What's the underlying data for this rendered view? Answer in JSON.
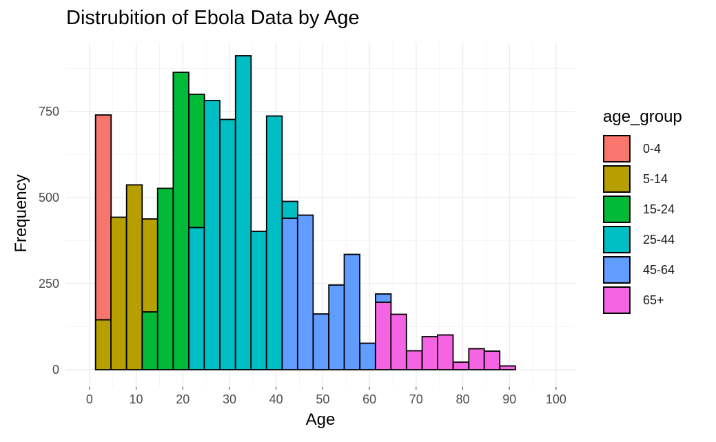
{
  "chart_data": {
    "type": "bar",
    "subtype": "stacked-histogram",
    "title": "Distrubition of Ebola Data by Age",
    "xlabel": "Age",
    "ylabel": "Frequency",
    "xlim": [
      -5,
      104
    ],
    "ylim": [
      -50,
      950
    ],
    "xticks": [
      0,
      10,
      20,
      30,
      40,
      50,
      60,
      70,
      80,
      90,
      100
    ],
    "yticks": [
      0,
      250,
      500,
      750
    ],
    "grid": true,
    "legend_position": "right",
    "legend_title": "age_group",
    "groups": [
      "0-4",
      "5-14",
      "15-24",
      "25-44",
      "45-64",
      "65+"
    ],
    "colors": {
      "0-4": "#F8766D",
      "5-14": "#B79F00",
      "15-24": "#00BA38",
      "25-44": "#00BFC4",
      "45-64": "#619CFF",
      "65+": "#F564E3"
    },
    "bin_width": 3.33,
    "bins": [
      {
        "start": 1.3,
        "stack": [
          {
            "group": "5-14",
            "value": 145
          },
          {
            "group": "0-4",
            "value": 595
          }
        ]
      },
      {
        "start": 4.6,
        "stack": [
          {
            "group": "5-14",
            "value": 443
          }
        ]
      },
      {
        "start": 7.95,
        "stack": [
          {
            "group": "5-14",
            "value": 537
          }
        ]
      },
      {
        "start": 11.3,
        "stack": [
          {
            "group": "15-24",
            "value": 168
          },
          {
            "group": "5-14",
            "value": 270
          }
        ]
      },
      {
        "start": 14.6,
        "stack": [
          {
            "group": "15-24",
            "value": 527
          }
        ]
      },
      {
        "start": 17.95,
        "stack": [
          {
            "group": "15-24",
            "value": 864
          }
        ]
      },
      {
        "start": 21.3,
        "stack": [
          {
            "group": "25-44",
            "value": 413
          },
          {
            "group": "15-24",
            "value": 387
          }
        ]
      },
      {
        "start": 24.6,
        "stack": [
          {
            "group": "25-44",
            "value": 782
          }
        ]
      },
      {
        "start": 27.95,
        "stack": [
          {
            "group": "25-44",
            "value": 727
          }
        ]
      },
      {
        "start": 31.3,
        "stack": [
          {
            "group": "25-44",
            "value": 912
          }
        ]
      },
      {
        "start": 34.6,
        "stack": [
          {
            "group": "25-44",
            "value": 402
          }
        ]
      },
      {
        "start": 37.95,
        "stack": [
          {
            "group": "25-44",
            "value": 737
          }
        ]
      },
      {
        "start": 41.3,
        "stack": [
          {
            "group": "45-64",
            "value": 440
          },
          {
            "group": "25-44",
            "value": 49
          }
        ]
      },
      {
        "start": 44.6,
        "stack": [
          {
            "group": "45-64",
            "value": 449
          }
        ]
      },
      {
        "start": 47.95,
        "stack": [
          {
            "group": "45-64",
            "value": 162
          }
        ]
      },
      {
        "start": 51.3,
        "stack": [
          {
            "group": "45-64",
            "value": 246
          }
        ]
      },
      {
        "start": 54.6,
        "stack": [
          {
            "group": "45-64",
            "value": 335
          }
        ]
      },
      {
        "start": 57.95,
        "stack": [
          {
            "group": "45-64",
            "value": 77
          }
        ]
      },
      {
        "start": 61.3,
        "stack": [
          {
            "group": "65+",
            "value": 196
          },
          {
            "group": "45-64",
            "value": 24
          }
        ]
      },
      {
        "start": 64.6,
        "stack": [
          {
            "group": "65+",
            "value": 161
          }
        ]
      },
      {
        "start": 67.95,
        "stack": [
          {
            "group": "65+",
            "value": 55
          }
        ]
      },
      {
        "start": 71.3,
        "stack": [
          {
            "group": "65+",
            "value": 96
          }
        ]
      },
      {
        "start": 74.6,
        "stack": [
          {
            "group": "65+",
            "value": 101
          }
        ]
      },
      {
        "start": 77.95,
        "stack": [
          {
            "group": "65+",
            "value": 22
          }
        ]
      },
      {
        "start": 81.3,
        "stack": [
          {
            "group": "65+",
            "value": 61
          }
        ]
      },
      {
        "start": 84.6,
        "stack": [
          {
            "group": "65+",
            "value": 54
          }
        ]
      },
      {
        "start": 87.95,
        "stack": [
          {
            "group": "65+",
            "value": 11
          }
        ]
      },
      {
        "start": 91.3,
        "stack": [
          {
            "group": "65+",
            "value": 0
          }
        ]
      }
    ]
  }
}
